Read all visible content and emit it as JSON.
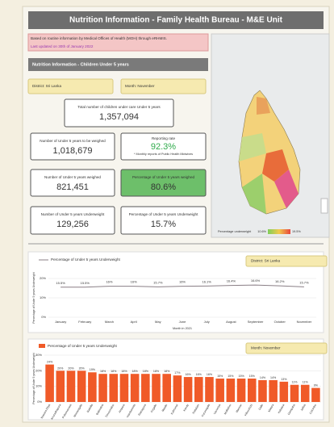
{
  "header": {
    "title": "Nutrition Information - Family Health Bureau - M&E Unit",
    "note": "Based on routine information by Medical Offices of Health (MOH) through eRHMIS.",
    "updated": "Last updated on 30th of January 2022"
  },
  "section_title": "Nutrition Information - Children Under 5 years",
  "filters": {
    "district": "District: Sri Lanka",
    "month": "Month: November"
  },
  "kpis": [
    {
      "label": "Total number of children under care Under 5 years",
      "value": "1,357,094"
    },
    {
      "label": "Number of Under 5 years to be weighed",
      "value": "1,018,679"
    },
    {
      "label": "Reporting rate",
      "value": "92.3%",
      "footnote": "* Monthly reports of Public Health Midwives"
    },
    {
      "label": "Number of Under 5 years weighed",
      "value": "821,451"
    },
    {
      "label": "Percentage of Under 5 years weighed",
      "value": "80.6%"
    },
    {
      "label": "Number of Under 5 years Underweight",
      "value": "129,256"
    },
    {
      "label": "Percentage of Under 5 years Underweight",
      "value": "15.7%"
    }
  ],
  "map": {
    "legend_title": "Percentage underweight",
    "legend_min": "10.6%",
    "legend_max": "19.5%"
  },
  "chart_data": [
    {
      "type": "line",
      "filter": "District: Sri Lanka",
      "x_label": "Month in 2021",
      "y_label": "Percentage of Under 5 years Underweight",
      "categories": [
        "January",
        "February",
        "March",
        "April",
        "May",
        "June",
        "July",
        "August",
        "September",
        "October",
        "November"
      ],
      "series": [
        {
          "name": "Percentage of Under 5 years Underweight",
          "color": "#8a7f86",
          "values": [
            15.5,
            15.5,
            16,
            16,
            15.7,
            16,
            16.1,
            16.4,
            16.6,
            16.2,
            15.7
          ],
          "value_labels": [
            "15.5%",
            "15.5%",
            "16%",
            "16%",
            "15.7%",
            "16%",
            "16.1%",
            "16.4%",
            "16.6%",
            "16.2%",
            "15.7%"
          ]
        }
      ],
      "ylim": [
        0,
        20
      ],
      "yticks": [
        {
          "value": 0,
          "label": "0%"
        },
        {
          "value": 10,
          "label": "10%"
        },
        {
          "value": 20,
          "label": "20%"
        }
      ]
    },
    {
      "type": "bar",
      "filter": "Month: November",
      "y_label": "Percentage of Under 5 years Underweight",
      "categories": [
        "Nuwara Eliya",
        "Anuradhapura",
        "Polonnaruwa",
        "Monaragala",
        "Badulla",
        "Batticaloa",
        "Trincomalee",
        "Ampara",
        "Hambantota",
        "Ratnapura",
        "Kegalle",
        "Matale",
        "Kalmunai",
        "Kandy",
        "Puttalam",
        "Kurunegala",
        "Vavuniya",
        "Mullaitivu",
        "Mannar",
        "Kilinochchi",
        "Galle",
        "Matara",
        "Kalutara",
        "Gampaha",
        "Jaffna",
        "Colombo"
      ],
      "series": [
        {
          "name": "Percentage of Under 5 years Underweight",
          "color": "#f05a28",
          "values": [
            24,
            20,
            20,
            20,
            19,
            18,
            18,
            18,
            18,
            18,
            18,
            18,
            17,
            16,
            16,
            16,
            15,
            15,
            15,
            15,
            14,
            14,
            13,
            11,
            11,
            9
          ],
          "value_labels": [
            "24%",
            "20%",
            "20%",
            "20%",
            "19%",
            "18%",
            "18%",
            "18%",
            "18%",
            "18%",
            "18%",
            "18%",
            "17%",
            "16%",
            "16%",
            "16%",
            "15%",
            "15%",
            "15%",
            "15%",
            "14%",
            "14%",
            "13%",
            "11%",
            "11%",
            "9%"
          ]
        }
      ],
      "ylim": [
        0,
        30
      ],
      "yticks": [
        {
          "value": 0,
          "label": "0%"
        },
        {
          "value": 10,
          "label": "10%"
        },
        {
          "value": 20,
          "label": "20%"
        },
        {
          "value": 30,
          "label": "30%"
        }
      ]
    }
  ]
}
